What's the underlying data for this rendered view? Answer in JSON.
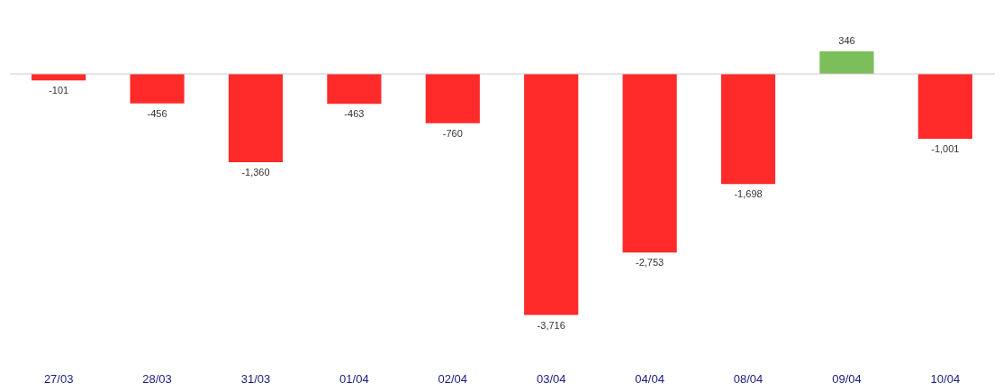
{
  "chart_data": {
    "type": "bar",
    "categories": [
      "27/03",
      "28/03",
      "31/03",
      "01/04",
      "02/04",
      "03/04",
      "04/04",
      "08/04",
      "09/04",
      "10/04"
    ],
    "values": [
      -101,
      -456,
      -1360,
      -463,
      -760,
      -3716,
      -2753,
      -1698,
      346,
      -1001
    ],
    "value_labels": [
      "-101",
      "-456",
      "-1,360",
      "-463",
      "-760",
      "-3,716",
      "-2,753",
      "-1,698",
      "346",
      "-1,001"
    ],
    "colors": [
      "#ff2a2a",
      "#ff2a2a",
      "#ff2a2a",
      "#ff2a2a",
      "#ff2a2a",
      "#ff2a2a",
      "#ff2a2a",
      "#ff2a2a",
      "#7cbf5a",
      "#ff2a2a"
    ]
  }
}
